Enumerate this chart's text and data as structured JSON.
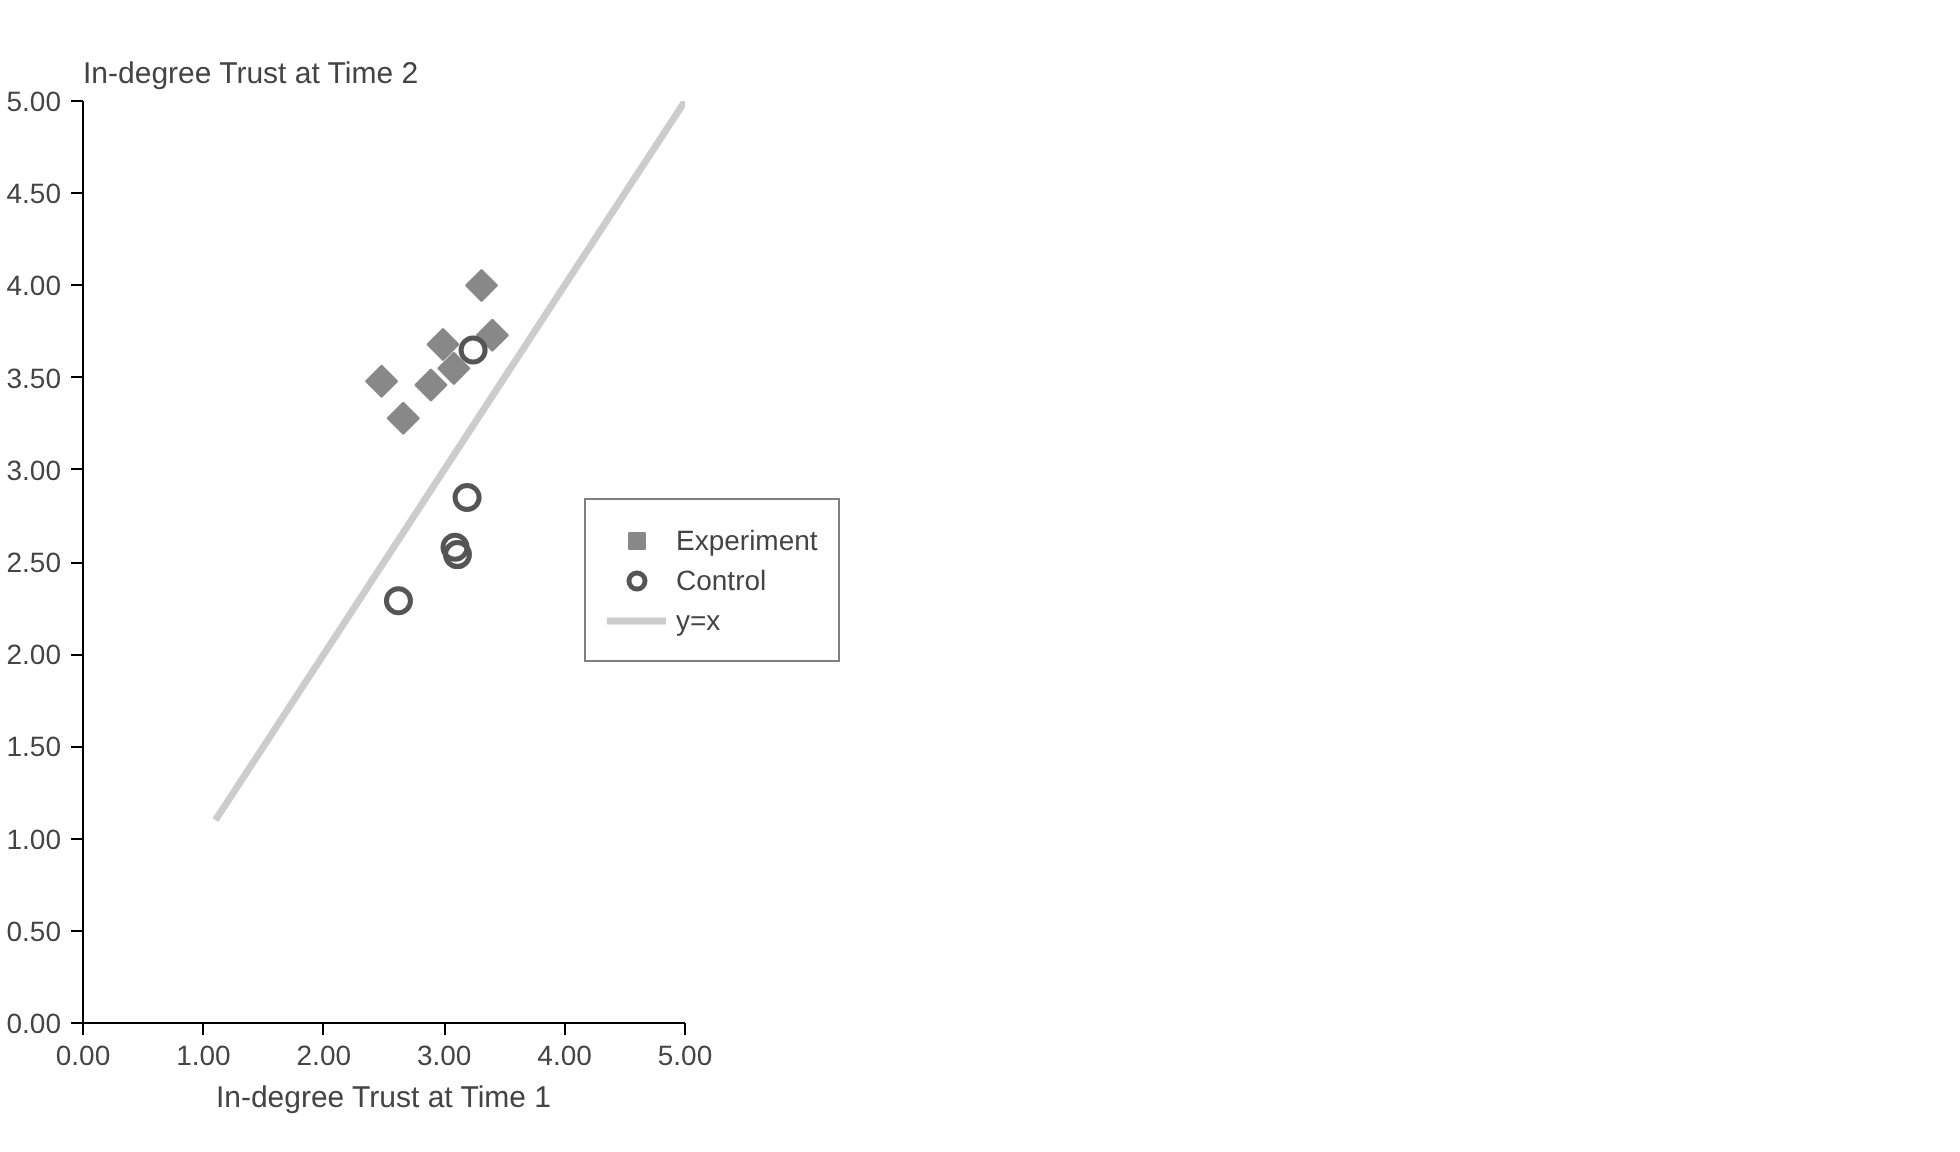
{
  "chart_data": {
    "type": "scatter",
    "xlabel": "In-degree Trust at Time 1",
    "ylabel": "In-degree Trust at Time 2",
    "xlim": [
      0,
      5
    ],
    "ylim": [
      0,
      5
    ],
    "xticks": [
      {
        "value": 0,
        "label": "0.00"
      },
      {
        "value": 1,
        "label": "1.00"
      },
      {
        "value": 2,
        "label": "2.00"
      },
      {
        "value": 3,
        "label": "3.00"
      },
      {
        "value": 4,
        "label": "4.00"
      },
      {
        "value": 5,
        "label": "5.00"
      }
    ],
    "yticks": [
      {
        "value": 0,
        "label": "0.00"
      },
      {
        "value": 0.5,
        "label": "0.50"
      },
      {
        "value": 1,
        "label": "1.00"
      },
      {
        "value": 1.5,
        "label": "1.50"
      },
      {
        "value": 2,
        "label": "2.00"
      },
      {
        "value": 2.5,
        "label": "2.50"
      },
      {
        "value": 3,
        "label": "3.00"
      },
      {
        "value": 3.5,
        "label": "3.50"
      },
      {
        "value": 4,
        "label": "4.00"
      },
      {
        "value": 4.5,
        "label": "4.50"
      },
      {
        "value": 5,
        "label": "5.00"
      }
    ],
    "grid": false,
    "legend": "right",
    "series": [
      {
        "name": "Experiment",
        "marker": "diamond",
        "color": "#888888",
        "x": [
          2.48,
          2.66,
          2.89,
          2.99,
          3.08,
          3.31,
          3.4
        ],
        "values": [
          3.48,
          3.28,
          3.46,
          3.68,
          3.55,
          4.0,
          3.73
        ]
      },
      {
        "name": "Control",
        "marker": "circle",
        "color": "#555555",
        "x": [
          2.62,
          3.09,
          3.11,
          3.19,
          3.24
        ],
        "values": [
          2.29,
          2.58,
          2.54,
          2.85,
          3.65
        ]
      },
      {
        "name": "y=x",
        "type": "line",
        "marker": "none",
        "color": "#cccccc",
        "x": [
          1.1,
          5.0
        ],
        "values": [
          1.1,
          5.0
        ]
      }
    ]
  }
}
